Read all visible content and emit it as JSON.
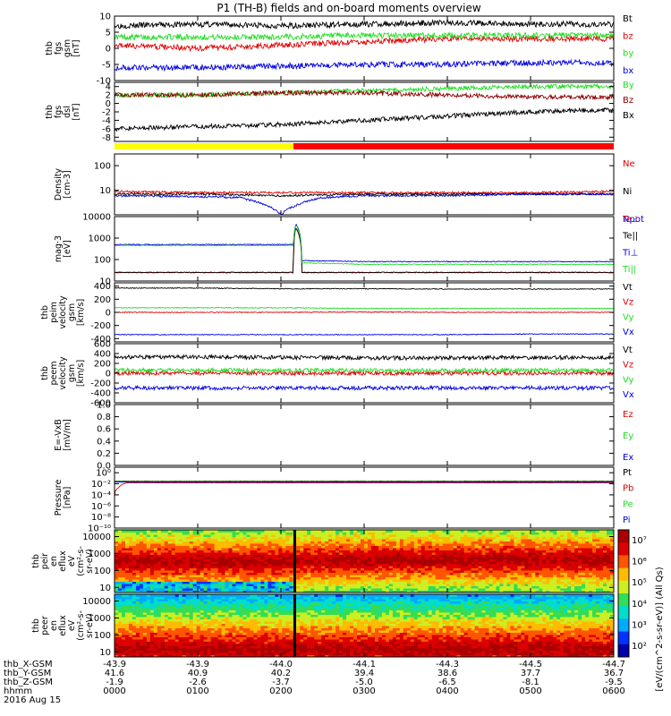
{
  "title": "P1 (TH-B) fields and on-board moments overview",
  "colors": {
    "black": "#000000",
    "red": "#e00000",
    "green": "#22dd22",
    "blue": "#0000e0",
    "darkred": "#8b0000",
    "yellow": "#ffff00",
    "brightred": "#ff0000",
    "lime": "#33ee33"
  },
  "chart_data": {
    "type": "line",
    "time_axis": {
      "x_tick_labels": [
        "0000",
        "0100",
        "0200",
        "0300",
        "0400",
        "0500",
        "0600"
      ],
      "rows": [
        {
          "label": "thb_X-GSM",
          "values": [
            "-43.9",
            "-43.9",
            "-44.0",
            "-44.1",
            "-44.3",
            "-44.5",
            "-44.7"
          ]
        },
        {
          "label": "thb_Y-GSM",
          "values": [
            "41.6",
            "40.9",
            "40.2",
            "39.4",
            "38.6",
            "37.7",
            "36.7"
          ]
        },
        {
          "label": "thb_Z-GSM",
          "values": [
            "-1.9",
            "-2.6",
            "-3.7",
            "-5.0",
            "-6.5",
            "-8.1",
            "-9.5"
          ]
        },
        {
          "label": "hhmm",
          "values": [
            "0000",
            "0100",
            "0200",
            "0300",
            "0400",
            "0500",
            "0600"
          ]
        }
      ],
      "date": "2016 Aug 15"
    },
    "panels": [
      {
        "key": "fgs",
        "type": "line",
        "ylabel": [
          "thb",
          "fgs",
          "gsm",
          "[nT]"
        ],
        "ylim": [
          -10,
          10
        ],
        "ticks": [
          "10",
          "5",
          "0",
          "-5",
          "-10"
        ],
        "tick_values": [
          10,
          5,
          0,
          -5,
          -10
        ],
        "series": [
          {
            "name": "Bt",
            "color": "black",
            "x": [
              0,
              1,
              2,
              3,
              4,
              5,
              6
            ],
            "values": [
              7,
              7.5,
              7,
              7.5,
              8,
              7.5,
              7.5
            ]
          },
          {
            "name": "bz",
            "color": "red",
            "x": [
              0,
              1,
              2,
              3,
              4,
              5,
              6
            ],
            "values": [
              1,
              0,
              1,
              2,
              3,
              3,
              3
            ]
          },
          {
            "name": "by",
            "color": "green",
            "x": [
              0,
              1,
              2,
              3,
              4,
              5,
              6
            ],
            "values": [
              3.5,
              3.5,
              3.5,
              4,
              4,
              4,
              4
            ]
          },
          {
            "name": "bx",
            "color": "blue",
            "x": [
              0,
              1,
              2,
              3,
              4,
              5,
              6
            ],
            "values": [
              -6,
              -6,
              -5.5,
              -5,
              -5,
              -4.5,
              -4.5
            ]
          }
        ]
      },
      {
        "key": "fgs_dsl",
        "type": "line",
        "ylabel": [
          "thb",
          "fgs",
          "dsl",
          "[nT]"
        ],
        "ylim": [
          -9,
          5
        ],
        "ticks": [
          "4",
          "2",
          "0",
          "-2",
          "-4",
          "-6",
          "-8"
        ],
        "tick_values": [
          4,
          2,
          0,
          -2,
          -4,
          -6,
          -8
        ],
        "series": [
          {
            "name": "By",
            "color": "green",
            "x": [
              0,
              1,
              2,
              3,
              4,
              5,
              6
            ],
            "values": [
              2,
              2,
              2.5,
              3,
              3.5,
              4,
              4
            ]
          },
          {
            "name": "Bz",
            "color": "darkred",
            "x": [
              0,
              1,
              2,
              3,
              4,
              5,
              6
            ],
            "values": [
              2,
              2,
              2.5,
              2.5,
              2,
              1.5,
              1.5
            ]
          },
          {
            "name": "Bx",
            "color": "black",
            "x": [
              0,
              1,
              2,
              3,
              4,
              5,
              6
            ],
            "values": [
              -6,
              -5.5,
              -5,
              -4,
              -3,
              -2,
              -1.5
            ]
          }
        ]
      },
      {
        "key": "density",
        "type": "line",
        "log": true,
        "ylabel": [
          "Density",
          "[cm-3]"
        ],
        "ylim": [
          1,
          300
        ],
        "ticks": [
          "100",
          "10"
        ],
        "tick_values": [
          100,
          10
        ],
        "series": [
          {
            "name": "Ne",
            "color": "red",
            "x": [
              0,
              1,
              2,
              3,
              4,
              5,
              6
            ],
            "values": [
              9,
              8,
              8,
              8,
              8,
              8,
              9
            ]
          },
          {
            "name": "Ni",
            "color": "black",
            "x": [
              0,
              1,
              2,
              3,
              4,
              5,
              6
            ],
            "values": [
              7,
              7,
              6,
              7,
              7,
              7,
              7
            ]
          },
          {
            "name": "Npot",
            "color": "blue",
            "x": [
              0,
              1,
              1.5,
              2,
              2.5,
              3,
              4,
              5,
              6
            ],
            "values": [
              6,
              5.5,
              5,
              1,
              5,
              6,
              6,
              7,
              7
            ]
          }
        ]
      },
      {
        "key": "temp",
        "type": "line",
        "log": true,
        "ylabel": [
          "mag·3",
          "[eV]"
        ],
        "ylim": [
          10,
          10000
        ],
        "ticks": [
          "10000",
          "1000",
          "100",
          "10"
        ],
        "tick_values": [
          10000,
          1000,
          100,
          10
        ],
        "series": [
          {
            "name": "Te⊥",
            "color": "red",
            "x": [
              0,
              2.15,
              2.18,
              2.25,
              3,
              6
            ],
            "values": [
              25,
              25,
              3000,
              25,
              25,
              25
            ]
          },
          {
            "name": "Te||",
            "color": "black",
            "x": [
              0,
              2.15,
              2.18,
              2.25,
              3,
              6
            ],
            "values": [
              25,
              25,
              3000,
              25,
              25,
              25
            ]
          },
          {
            "name": "Ti⊥",
            "color": "blue",
            "x": [
              0,
              2.15,
              2.18,
              2.25,
              3,
              6
            ],
            "values": [
              500,
              500,
              4500,
              90,
              80,
              80
            ]
          },
          {
            "name": "Ti||",
            "color": "green",
            "x": [
              0,
              2.15,
              2.18,
              2.25,
              3,
              6
            ],
            "values": [
              450,
              450,
              4000,
              70,
              60,
              60
            ]
          }
        ]
      },
      {
        "key": "peim",
        "type": "line",
        "ylabel": [
          "thb",
          "peim",
          "velocity",
          "gsm",
          "[km/s]"
        ],
        "ylim": [
          -450,
          450
        ],
        "ticks": [
          "400",
          "200",
          "0",
          "-200",
          "-400"
        ],
        "tick_values": [
          400,
          200,
          0,
          -200,
          -400
        ],
        "series": [
          {
            "name": "Vt",
            "color": "black",
            "x": [
              0,
              1,
              2,
              3,
              4,
              5,
              6
            ],
            "values": [
              370,
              370,
              360,
              360,
              355,
              355,
              355
            ]
          },
          {
            "name": "Vz",
            "color": "red",
            "x": [
              0,
              1,
              2,
              3,
              4,
              5,
              6
            ],
            "values": [
              0,
              0,
              0,
              5,
              0,
              0,
              0
            ]
          },
          {
            "name": "Vy",
            "color": "green",
            "x": [
              0,
              1,
              2,
              3,
              4,
              5,
              6
            ],
            "values": [
              70,
              70,
              70,
              60,
              60,
              60,
              60
            ]
          },
          {
            "name": "Vx",
            "color": "blue",
            "x": [
              0,
              1,
              2,
              3,
              4,
              5,
              6
            ],
            "values": [
              -340,
              -340,
              -340,
              -340,
              -340,
              -330,
              -330
            ]
          }
        ]
      },
      {
        "key": "peem",
        "type": "line",
        "ylabel": [
          "thb",
          "peem",
          "velocity",
          "gsm",
          "[km/s]"
        ],
        "ylim": [
          -600,
          600
        ],
        "ticks": [
          "600",
          "400",
          "200",
          "0",
          "-200",
          "-400",
          "-600"
        ],
        "tick_values": [
          600,
          400,
          200,
          0,
          -200,
          -400,
          -600
        ],
        "series": [
          {
            "name": "Vt",
            "color": "black",
            "x": [
              0,
              1,
              2,
              3,
              4,
              5,
              6
            ],
            "values": [
              330,
              330,
              320,
              310,
              310,
              320,
              320
            ]
          },
          {
            "name": "Vz",
            "color": "red",
            "x": [
              0,
              1,
              2,
              3,
              4,
              5,
              6
            ],
            "values": [
              0,
              0,
              0,
              0,
              0,
              0,
              0
            ]
          },
          {
            "name": "Vy",
            "color": "green",
            "x": [
              0,
              1,
              2,
              3,
              4,
              5,
              6
            ],
            "values": [
              60,
              60,
              60,
              60,
              60,
              60,
              60
            ]
          },
          {
            "name": "Vx",
            "color": "blue",
            "x": [
              0,
              1,
              2,
              3,
              4,
              5,
              6
            ],
            "values": [
              -300,
              -300,
              -300,
              -300,
              -300,
              -300,
              -300
            ]
          }
        ]
      },
      {
        "key": "efield",
        "type": "line",
        "ylabel": [
          "E=-VxB",
          "[mV/m]"
        ],
        "ylim": [
          0,
          1
        ],
        "ticks": [
          "1.0",
          "0.8",
          "0.6",
          "0.4",
          "0.2",
          "0.0"
        ],
        "tick_values": [
          1,
          0.8,
          0.6,
          0.4,
          0.2,
          0
        ],
        "series": [
          {
            "name": "Ez",
            "color": "red",
            "x": [],
            "values": []
          },
          {
            "name": "Ey",
            "color": "green",
            "x": [],
            "values": []
          },
          {
            "name": "Ex",
            "color": "blue",
            "x": [],
            "values": []
          }
        ]
      },
      {
        "key": "pressure",
        "type": "line",
        "log": true,
        "ylabel": [
          "Pressure",
          "[nPa]"
        ],
        "ylim": [
          1e-10,
          10
        ],
        "ticks": [
          "10⁰",
          "10⁻²",
          "10⁻⁴",
          "10⁻⁶",
          "10⁻⁸",
          "10⁻¹⁰"
        ],
        "tick_values": [
          1,
          0.01,
          0.0001,
          1e-06,
          1e-08,
          1e-10
        ],
        "series": [
          {
            "name": "Pt",
            "color": "black",
            "x": [
              0,
              6
            ],
            "values": [
              0.03,
              0.03
            ]
          },
          {
            "name": "Pb",
            "color": "red",
            "x": [
              0,
              0.05,
              0.15,
              6
            ],
            "values": [
              5e-05,
              0.002,
              0.015,
              0.015
            ]
          },
          {
            "name": "Pe",
            "color": "green",
            "x": [
              0,
              6
            ],
            "values": [
              0.025,
              0.025
            ]
          },
          {
            "name": "Pi",
            "color": "blue",
            "x": [
              0,
              6
            ],
            "values": [
              0.02,
              0.02
            ]
          }
        ]
      },
      {
        "key": "peir",
        "type": "heatmap",
        "log": true,
        "ylabel": [
          "thb",
          "peir",
          "en",
          "eflux",
          "eV",
          "(cm²-s-",
          "sr-eV)"
        ],
        "ylim": [
          5,
          25000
        ],
        "ticks": [
          "10000",
          "1000",
          "100",
          "10"
        ],
        "tick_values": [
          10000,
          1000,
          100,
          10
        ],
        "peak_energy_ev": {
          "x": [
            0,
            1,
            2,
            3,
            4,
            5,
            6
          ],
          "values": [
            350,
            350,
            350,
            450,
            450,
            450,
            450
          ]
        }
      },
      {
        "key": "peer",
        "type": "heatmap",
        "log": true,
        "ylabel": [
          "thb",
          "peer",
          "en",
          "eflux",
          "eV",
          "(cm²-s-",
          "sr-eV)"
        ],
        "ylim": [
          5,
          25000
        ],
        "ticks": [
          "10000",
          "1000",
          "100",
          "10"
        ],
        "tick_values": [
          10000,
          1000,
          100,
          10
        ],
        "peak_energy_ev": {
          "x": [
            0,
            1,
            2,
            3,
            4,
            5,
            6
          ],
          "values": [
            15,
            15,
            15,
            15,
            15,
            15,
            15
          ]
        }
      }
    ],
    "mode_bar": {
      "segments": [
        {
          "color": "yellow",
          "x": [
            0,
            2.15
          ]
        },
        {
          "color": "brightred",
          "x": [
            2.15,
            6
          ]
        }
      ]
    },
    "colorbar": {
      "label": "[eV/(cm^2-s-sr-eV)] (All Qs)",
      "ticks": [
        "10⁷",
        "10⁶",
        "10⁵",
        "10⁴",
        "10³",
        "10²"
      ],
      "tick_values": [
        7,
        6,
        5,
        4,
        3,
        2
      ]
    }
  }
}
